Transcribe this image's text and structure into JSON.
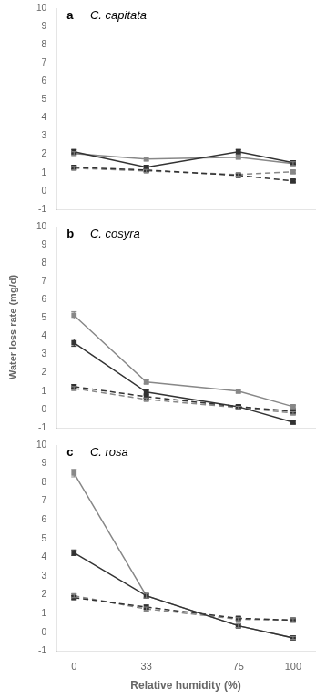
{
  "chart_data": [
    {
      "type": "line",
      "annotations": [
        "a",
        "C. capitata"
      ],
      "x": [
        0,
        33,
        75,
        100
      ],
      "xlim": [
        -8,
        110
      ],
      "xticks": [
        0,
        33,
        75,
        100
      ],
      "ylim": [
        -1,
        10
      ],
      "yticks": [
        -1,
        0,
        1,
        2,
        3,
        4,
        5,
        6,
        7,
        8,
        9,
        10
      ],
      "grid": false,
      "tick_labels": "y",
      "series": [
        {
          "color": "#333333",
          "line_style": "solid",
          "marker": "square",
          "values": [
            2.15,
            1.3,
            2.15,
            1.55
          ],
          "yerr": [
            0.12,
            0.1,
            0.12,
            0.1
          ]
        },
        {
          "color": "#888888",
          "line_style": "solid",
          "marker": "square",
          "values": [
            2.05,
            1.75,
            1.85,
            1.5
          ],
          "yerr": [
            0.1,
            0.1,
            0.1,
            0.1
          ]
        },
        {
          "color": "#333333",
          "line_style": "dashed",
          "marker": "square",
          "values": [
            1.3,
            1.15,
            0.85,
            0.55
          ],
          "yerr": [
            0.1,
            0.08,
            0.08,
            0.07
          ]
        },
        {
          "color": "#888888",
          "line_style": "dashed",
          "marker": "square",
          "values": [
            1.25,
            1.1,
            0.9,
            1.05
          ],
          "yerr": [
            0.1,
            0.08,
            0.08,
            0.08
          ]
        }
      ]
    },
    {
      "type": "line",
      "annotations": [
        "b",
        "C. cosyra"
      ],
      "ylabel": "Water loss rate (mg/d)",
      "x": [
        0,
        33,
        75,
        100
      ],
      "xlim": [
        -8,
        110
      ],
      "xticks": [
        0,
        33,
        75,
        100
      ],
      "ylim": [
        -1,
        10
      ],
      "yticks": [
        -1,
        0,
        1,
        2,
        3,
        4,
        5,
        6,
        7,
        8,
        9,
        10
      ],
      "grid": false,
      "tick_labels": "y",
      "series": [
        {
          "color": "#333333",
          "line_style": "solid",
          "marker": "square",
          "values": [
            3.65,
            0.95,
            0.15,
            -0.7
          ],
          "yerr": [
            0.2,
            0.1,
            0.08,
            0.1
          ]
        },
        {
          "color": "#888888",
          "line_style": "solid",
          "marker": "square",
          "values": [
            5.15,
            1.5,
            1.0,
            0.15
          ],
          "yerr": [
            0.2,
            0.1,
            0.1,
            0.08
          ]
        },
        {
          "color": "#333333",
          "line_style": "dashed",
          "marker": "square",
          "values": [
            1.25,
            0.7,
            0.15,
            -0.1
          ],
          "yerr": [
            0.1,
            0.08,
            0.07,
            0.07
          ]
        },
        {
          "color": "#888888",
          "line_style": "dashed",
          "marker": "square",
          "values": [
            1.15,
            0.55,
            0.1,
            -0.2
          ],
          "yerr": [
            0.1,
            0.08,
            0.07,
            0.07
          ]
        }
      ]
    },
    {
      "type": "line",
      "annotations": [
        "c",
        "C. rosa"
      ],
      "xlabel": "Relative humidity (%)",
      "x": [
        0,
        33,
        75,
        100
      ],
      "xlim": [
        -8,
        110
      ],
      "xticks": [
        0,
        33,
        75,
        100
      ],
      "ylim": [
        -1,
        10
      ],
      "yticks": [
        -1,
        0,
        1,
        2,
        3,
        4,
        5,
        6,
        7,
        8,
        9,
        10
      ],
      "grid": false,
      "series": [
        {
          "color": "#333333",
          "line_style": "solid",
          "marker": "square",
          "values": [
            4.25,
            1.95,
            0.35,
            -0.3
          ],
          "yerr": [
            0.15,
            0.12,
            0.1,
            0.08
          ]
        },
        {
          "color": "#888888",
          "line_style": "solid",
          "marker": "square",
          "values": [
            8.5,
            1.95,
            0.35,
            -0.3
          ],
          "yerr": [
            0.2,
            0.12,
            0.1,
            0.08
          ]
        },
        {
          "color": "#333333",
          "line_style": "dashed",
          "marker": "square",
          "values": [
            1.85,
            1.35,
            0.75,
            0.65
          ],
          "yerr": [
            0.1,
            0.1,
            0.08,
            0.08
          ]
        },
        {
          "color": "#888888",
          "line_style": "dashed",
          "marker": "square",
          "values": [
            1.95,
            1.25,
            0.7,
            0.65
          ],
          "yerr": [
            0.1,
            0.1,
            0.08,
            0.08
          ]
        }
      ]
    }
  ]
}
